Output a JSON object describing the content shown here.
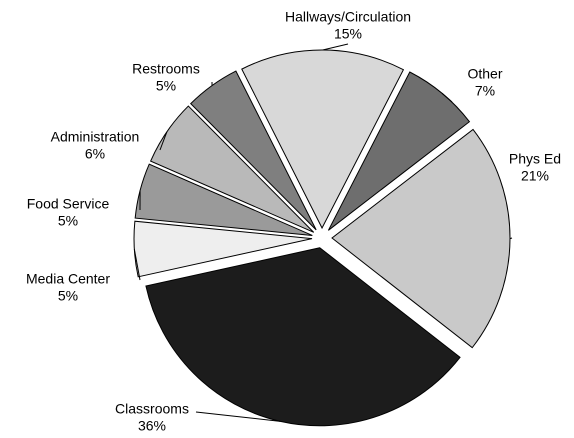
{
  "chart_data": {
    "type": "pie",
    "categories": [
      "Classrooms",
      "Phys Ed",
      "Other",
      "Hallways/Circulation",
      "Restrooms",
      "Administration",
      "Food Service",
      "Media Center"
    ],
    "values": [
      36,
      21,
      7,
      15,
      5,
      6,
      5,
      5
    ],
    "value_labels": [
      "36%",
      "21%",
      "7%",
      "15%",
      "5%",
      "6%",
      "5%",
      "5%"
    ],
    "colors": [
      "#1c1c1c",
      "#c9c9c9",
      "#6e6e6e",
      "#d8d8d8",
      "#7f7f7f",
      "#b9b9b9",
      "#9a9a9a",
      "#eeeeee"
    ]
  }
}
